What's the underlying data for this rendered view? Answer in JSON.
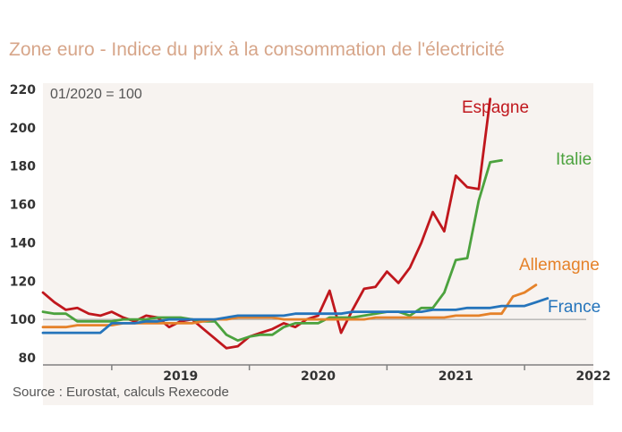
{
  "chart_data": {
    "type": "line",
    "title": "Zone euro - Indice du prix à la consommation de l'électricité",
    "annotation": "01/2020 = 100",
    "source": "Source : Eurostat, calculs Rexecode",
    "x_start": "2018-07",
    "x_end": "2022-07",
    "x_tick_labels": [
      "2019",
      "2020",
      "2021",
      "2022"
    ],
    "y_ticks": [
      80,
      100,
      120,
      140,
      160,
      180,
      200,
      220
    ],
    "ylim": [
      80,
      220
    ],
    "reference_line": 100,
    "grid": false,
    "series": [
      {
        "name": "Espagne",
        "color": "#c0171d",
        "start": "2018-07",
        "values": [
          114,
          109,
          105,
          106,
          103,
          102,
          104,
          101,
          99,
          102,
          101,
          96,
          99,
          100,
          95,
          90,
          85,
          86,
          91,
          93,
          95,
          98,
          96,
          100,
          102,
          115,
          93,
          105,
          116,
          117,
          125,
          119,
          127,
          140,
          156,
          146,
          175,
          169,
          168,
          215
        ]
      },
      {
        "name": "Italie",
        "color": "#4ca23e",
        "start": "2018-07",
        "values": [
          104,
          103,
          103,
          99,
          99,
          99,
          99,
          100,
          100,
          100,
          101,
          101,
          101,
          100,
          99,
          99,
          92,
          89,
          91,
          92,
          92,
          96,
          98,
          98,
          98,
          101,
          101,
          101,
          102,
          103,
          104,
          104,
          102,
          106,
          106,
          114,
          131,
          132,
          162,
          182,
          183
        ]
      },
      {
        "name": "Allemagne",
        "color": "#e5822a",
        "start": "2018-07",
        "values": [
          96,
          96,
          96,
          97,
          97,
          97,
          97,
          98,
          98,
          98,
          98,
          98,
          98,
          98,
          99,
          100,
          100,
          101,
          101,
          101,
          101,
          100,
          100,
          100,
          100,
          100,
          100,
          100,
          100,
          101,
          101,
          101,
          101,
          101,
          101,
          101,
          102,
          102,
          102,
          103,
          103,
          112,
          114,
          118
        ]
      },
      {
        "name": "France",
        "color": "#2574bb",
        "start": "2018-07",
        "values": [
          93,
          93,
          93,
          93,
          93,
          93,
          98,
          98,
          98,
          99,
          99,
          100,
          100,
          100,
          100,
          100,
          101,
          102,
          102,
          102,
          102,
          102,
          103,
          103,
          103,
          103,
          103,
          104,
          104,
          104,
          104,
          104,
          104,
          104,
          105,
          105,
          105,
          106,
          106,
          106,
          107,
          107,
          107,
          109,
          111
        ]
      }
    ]
  }
}
